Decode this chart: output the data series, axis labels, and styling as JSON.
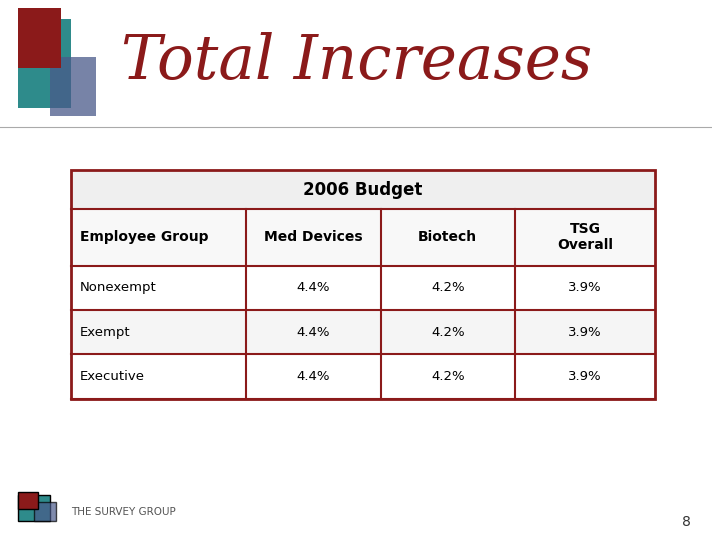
{
  "title": "Total Increases",
  "title_color": "#8B1A1A",
  "title_fontsize": 44,
  "background_color": "#FFFFFF",
  "table_header": "2006 Budget",
  "col_headers": [
    "Employee Group",
    "Med Devices",
    "Biotech",
    "TSG\nOverall"
  ],
  "rows": [
    [
      "Nonexempt",
      "4.4%",
      "4.2%",
      "3.9%"
    ],
    [
      "Exempt",
      "4.4%",
      "4.2%",
      "3.9%"
    ],
    [
      "Executive",
      "4.4%",
      "4.2%",
      "3.9%"
    ]
  ],
  "border_color": "#8B1A1A",
  "page_number": "8",
  "logo_text": "THE SURVEY GROUP",
  "decoration_colors": {
    "red": "#8B1A1A",
    "teal": "#2E8B8B",
    "blue": "#4A5A8A"
  }
}
